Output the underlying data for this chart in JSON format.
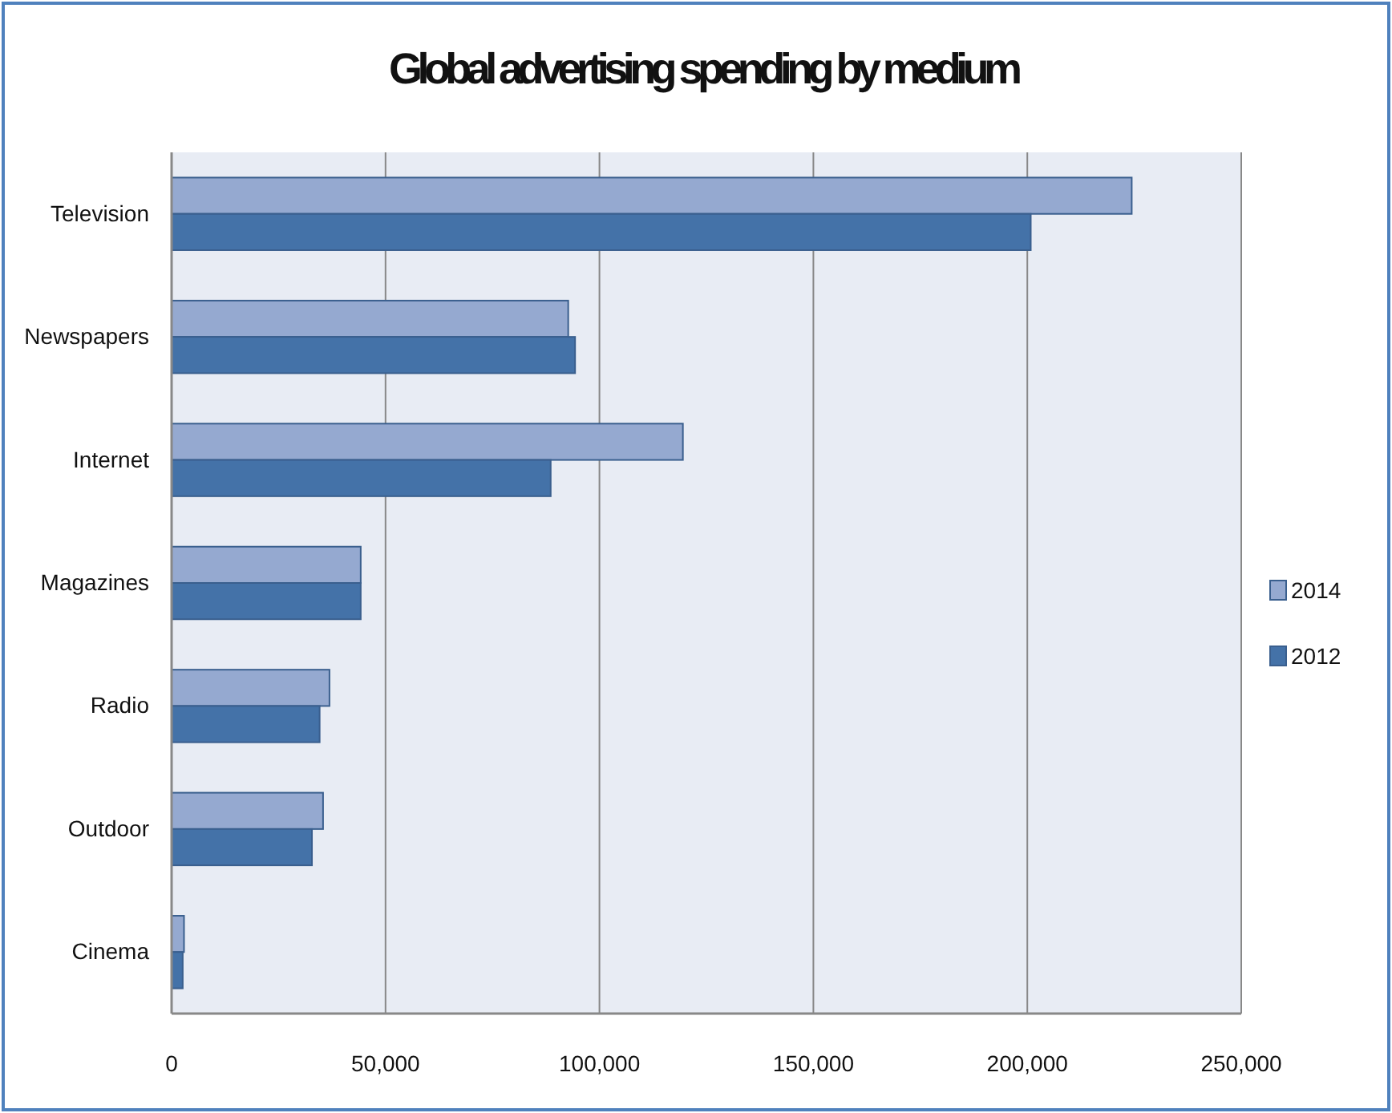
{
  "chart_data": {
    "type": "bar",
    "orientation": "horizontal",
    "title": "Global advertising spending by medium",
    "categories": [
      "Television",
      "Newspapers",
      "Internet",
      "Magazines",
      "Radio",
      "Outdoor",
      "Cinema"
    ],
    "series": [
      {
        "name": "2014",
        "color": "#95a9d0",
        "values": [
          224400,
          92700,
          119500,
          44200,
          36900,
          35400,
          2900
        ]
      },
      {
        "name": "2012",
        "color": "#4472a8",
        "values": [
          200800,
          94300,
          88600,
          44200,
          34600,
          32800,
          2600
        ]
      }
    ],
    "xlim": [
      0,
      250000
    ],
    "xticks": [
      {
        "value": 0,
        "label": "0"
      },
      {
        "value": 50000,
        "label": "50,000"
      },
      {
        "value": 100000,
        "label": "100,000"
      },
      {
        "value": 150000,
        "label": "150,000"
      },
      {
        "value": 200000,
        "label": "200,000"
      },
      {
        "value": 250000,
        "label": "250,000"
      }
    ],
    "grid": "x",
    "legend": "right"
  }
}
